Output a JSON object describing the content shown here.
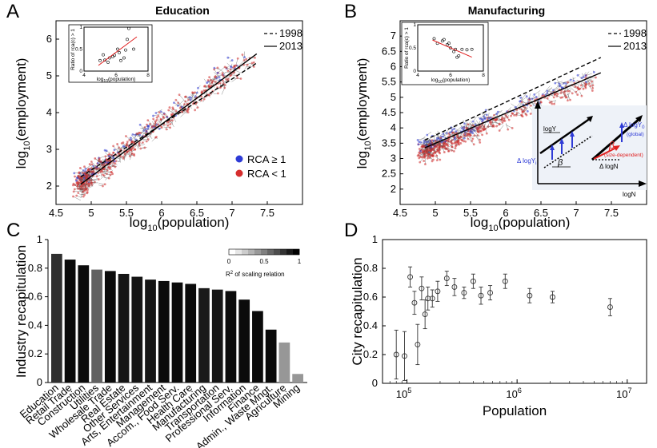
{
  "panels": {
    "a": {
      "letter": "A",
      "title": "Education",
      "xlabel_pre": "log",
      "xlabel_sub": "10",
      "xlabel_post": "(population)",
      "ylabel_pre": "log",
      "ylabel_sub": "10",
      "ylabel_post": "(employment)",
      "legend_1998": "1998",
      "legend_2013": "2013",
      "legend_rca_hi": "RCA ≥ 1",
      "legend_rca_lo": "RCA < 1",
      "inset_ylabel": "Ratio of rca(c) > 1",
      "inset_xlabel_pre": "log",
      "inset_xlabel_sub": "10",
      "inset_xlabel_post": "(population)"
    },
    "b": {
      "letter": "B",
      "title": "Manufacturing",
      "xlabel_pre": "log",
      "xlabel_sub": "10",
      "xlabel_post": "(population)",
      "ylabel_pre": "log",
      "ylabel_sub": "10",
      "ylabel_post": "(employment)",
      "legend_1998": "1998",
      "legend_2013": "2013",
      "inset_ylabel": "Ratio of rca(c) > 1",
      "inset_xlabel_pre": "log",
      "inset_xlabel_sub": "10",
      "inset_xlabel_post": "(population)",
      "diagram": {
        "logY": "logY",
        "logN": "logN",
        "dlogN": "Δ logN",
        "dlogYi_pre": "Δ logY",
        "dlogYi_sub": "i",
        "dlogY0_pre": "Δ logY",
        "dlogY0_sub": "0",
        "global": "(global)",
        "size_dependent": "(size-dependent)",
        "beta": "β"
      }
    },
    "c": {
      "letter": "C",
      "ylabel": "Industry recapitulation",
      "colorbar_label_pre": "R",
      "colorbar_label_sup": "2",
      "colorbar_label_post": " of scaling relation",
      "colorbar_ticks": [
        "0",
        "0.5",
        "1"
      ]
    },
    "d": {
      "letter": "D",
      "ylabel": "City recapitulation",
      "xlabel": "Population"
    }
  },
  "chart_data": [
    {
      "id": "A",
      "type": "scatter",
      "title": "Education",
      "xlabel": "log10(population)",
      "ylabel": "log10(employment)",
      "xlim": [
        4.5,
        8
      ],
      "ylim": [
        1.5,
        6.5
      ],
      "xticks": [
        "4.5",
        "5",
        "5.5",
        "6",
        "6.5",
        "7",
        "7.5"
      ],
      "yticks": [
        "2",
        "3",
        "4",
        "5",
        "6"
      ],
      "fit_lines": [
        {
          "name": "1998",
          "style": "dashed",
          "x": [
            4.85,
            7.35
          ],
          "y": [
            2.25,
            5.35
          ]
        },
        {
          "name": "2013",
          "style": "solid",
          "x": [
            4.85,
            7.35
          ],
          "y": [
            2.05,
            5.6
          ]
        }
      ],
      "legend": [
        "RCA ≥ 1",
        "RCA < 1"
      ],
      "colors": {
        "rca_hi": "#2e3bd6",
        "rca_lo": "#d62e2e"
      },
      "inset": {
        "xlim": [
          4,
          8
        ],
        "ylim": [
          0,
          1
        ],
        "xticks": [
          "4",
          "6",
          "8"
        ],
        "yticks": [
          "0",
          "0.5",
          "1"
        ],
        "points": [
          [
            5.0,
            0.24
          ],
          [
            5.2,
            0.37
          ],
          [
            5.3,
            0.25
          ],
          [
            5.5,
            0.2
          ],
          [
            5.6,
            0.3
          ],
          [
            5.8,
            0.33
          ],
          [
            5.9,
            0.36
          ],
          [
            6.1,
            0.5
          ],
          [
            6.2,
            0.42
          ],
          [
            6.3,
            0.24
          ],
          [
            6.5,
            0.3
          ],
          [
            6.6,
            0.48
          ],
          [
            6.7,
            0.72
          ],
          [
            6.8,
            0.97
          ],
          [
            7.1,
            0.5
          ]
        ],
        "fit": {
          "x": [
            4.9,
            7.3
          ],
          "y": [
            0.13,
            0.78
          ]
        }
      }
    },
    {
      "id": "B",
      "type": "scatter",
      "title": "Manufacturing",
      "xlabel": "log10(population)",
      "ylabel": "log10(employment)",
      "xlim": [
        4.5,
        8
      ],
      "ylim": [
        1.5,
        7.5
      ],
      "xticks": [
        "4.5",
        "5",
        "5.5",
        "6",
        "6.5",
        "7",
        "7.5"
      ],
      "yticks": [
        "2",
        "2.5",
        "3",
        "3.5",
        "4",
        "4.5",
        "5",
        "5.5",
        "6",
        "6.5",
        "7"
      ],
      "fit_lines": [
        {
          "name": "1998",
          "style": "dashed",
          "x": [
            4.85,
            7.35
          ],
          "y": [
            3.6,
            6.3
          ]
        },
        {
          "name": "2013",
          "style": "solid",
          "x": [
            4.85,
            7.35
          ],
          "y": [
            3.35,
            5.8
          ]
        }
      ],
      "inset": {
        "xlim": [
          4,
          8
        ],
        "ylim": [
          0,
          1
        ],
        "xticks": [
          "4",
          "6",
          "8"
        ],
        "yticks": [
          "0",
          "0.5",
          "1"
        ],
        "points": [
          [
            5.0,
            0.7
          ],
          [
            5.2,
            0.6
          ],
          [
            5.5,
            0.65
          ],
          [
            5.6,
            0.68
          ],
          [
            5.8,
            0.57
          ],
          [
            5.9,
            0.6
          ],
          [
            6.0,
            0.5
          ],
          [
            6.2,
            0.42
          ],
          [
            6.3,
            0.47
          ],
          [
            6.4,
            0.3
          ],
          [
            6.5,
            0.33
          ],
          [
            6.7,
            0.47
          ],
          [
            7.0,
            0.46
          ],
          [
            7.3,
            0.47
          ]
        ],
        "fit": {
          "x": [
            4.9,
            7.3
          ],
          "y": [
            0.67,
            0.3
          ]
        }
      }
    },
    {
      "id": "C",
      "type": "bar",
      "ylabel": "Industry recapitulation",
      "ylim": [
        0,
        1
      ],
      "yticks": [
        "0",
        "0.2",
        "0.4",
        "0.6",
        "0.8",
        "1"
      ],
      "categories": [
        "Education",
        "Retail Trade",
        "Construction",
        "Utilities",
        "Wholesale Trade",
        "Real Estate",
        "Other Services",
        "Arts, Entertainment",
        "Management",
        "Accom., Food Serv.",
        "Health Care",
        "Manufacturing",
        "Transportation",
        "Professional Serv.",
        "Information",
        "Finance",
        "Admin., Waste Mngt.",
        "Agriculture",
        "Mining"
      ],
      "values": [
        0.9,
        0.86,
        0.82,
        0.79,
        0.78,
        0.76,
        0.74,
        0.72,
        0.71,
        0.7,
        0.69,
        0.66,
        0.65,
        0.64,
        0.58,
        0.5,
        0.37,
        0.28,
        0.06
      ],
      "r2": [
        0.78,
        0.95,
        0.95,
        0.55,
        0.95,
        0.9,
        0.9,
        0.9,
        0.95,
        0.95,
        0.95,
        0.88,
        0.9,
        0.95,
        0.95,
        0.95,
        0.95,
        0.3,
        0.3
      ],
      "colorbar": {
        "range": [
          0,
          1
        ],
        "ticks": [
          "0",
          "0.5",
          "1"
        ]
      }
    },
    {
      "id": "D",
      "type": "scatter",
      "xscale": "log",
      "xlabel": "Population",
      "ylabel": "City recapitulation",
      "xlim": [
        60000,
        15000000
      ],
      "ylim": [
        0,
        1
      ],
      "yticks": [
        "0",
        "0.2",
        "0.4",
        "0.6",
        "0.8",
        "1"
      ],
      "xticks_exp": [
        "5",
        "6",
        "7"
      ],
      "points": [
        {
          "x": 80000,
          "y": 0.2,
          "err": 0.17
        },
        {
          "x": 95000,
          "y": 0.19,
          "err": 0.17
        },
        {
          "x": 107000,
          "y": 0.74,
          "err": 0.07
        },
        {
          "x": 117000,
          "y": 0.56,
          "err": 0.08
        },
        {
          "x": 125000,
          "y": 0.27,
          "err": 0.14
        },
        {
          "x": 136000,
          "y": 0.66,
          "err": 0.08
        },
        {
          "x": 146000,
          "y": 0.48,
          "err": 0.1
        },
        {
          "x": 155000,
          "y": 0.59,
          "err": 0.08
        },
        {
          "x": 170000,
          "y": 0.59,
          "err": 0.06
        },
        {
          "x": 190000,
          "y": 0.64,
          "err": 0.07
        },
        {
          "x": 230000,
          "y": 0.73,
          "err": 0.05
        },
        {
          "x": 270000,
          "y": 0.67,
          "err": 0.06
        },
        {
          "x": 330000,
          "y": 0.63,
          "err": 0.04
        },
        {
          "x": 400000,
          "y": 0.71,
          "err": 0.05
        },
        {
          "x": 470000,
          "y": 0.61,
          "err": 0.06
        },
        {
          "x": 570000,
          "y": 0.63,
          "err": 0.05
        },
        {
          "x": 780000,
          "y": 0.71,
          "err": 0.05
        },
        {
          "x": 1300000,
          "y": 0.61,
          "err": 0.05
        },
        {
          "x": 2100000,
          "y": 0.6,
          "err": 0.04
        },
        {
          "x": 7000000,
          "y": 0.53,
          "err": 0.06
        }
      ]
    }
  ]
}
